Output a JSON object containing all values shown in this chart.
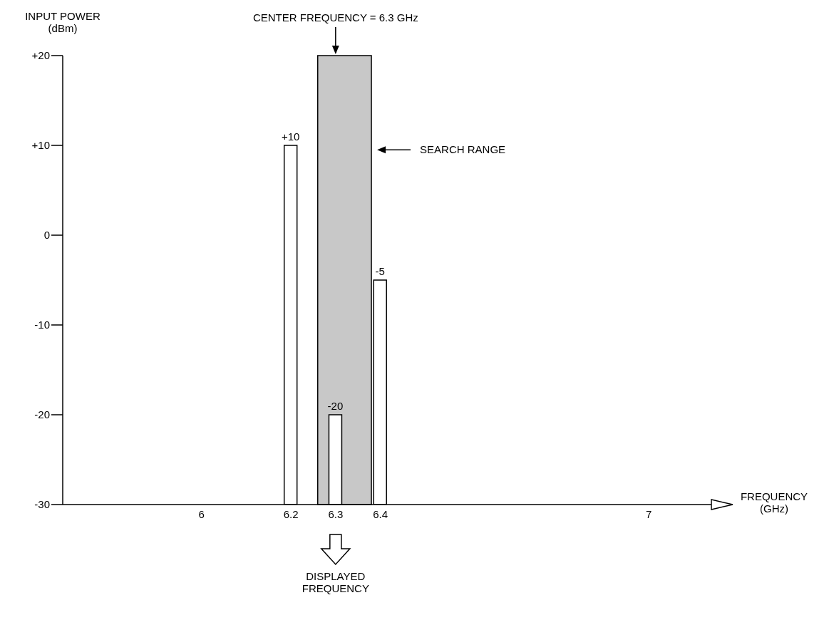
{
  "chart_data": {
    "type": "bar",
    "ylabel": "INPUT POWER (dBm)",
    "xlabel": "FREQUENCY (GHz)",
    "x": [
      6.2,
      6.3,
      6.4
    ],
    "base": [
      -30,
      -30,
      -30
    ],
    "values": [
      40,
      10,
      25
    ],
    "value_labels": [
      "+10",
      "-20",
      "-5"
    ],
    "color": "#ffffff",
    "xlim": [
      5.69,
      7.14
    ],
    "xticks": [
      6,
      6.2,
      6.3,
      6.4,
      7
    ],
    "ylim": [
      -30,
      20
    ],
    "yticks": [
      {
        "value": 20,
        "label": "+20"
      },
      {
        "value": 10,
        "label": "+10"
      },
      0,
      -10,
      -20,
      -30
    ],
    "bands": [
      {
        "axis": "x",
        "from": 6.26,
        "to": 6.38,
        "label": "SEARCH RANGE",
        "color": "#c8c8c8"
      }
    ],
    "annotations": [
      {
        "text": "CENTER FREQUENCY = 6.3 GHz",
        "x": 6.3,
        "y": 20
      },
      "DISPLAYED FREQUENCY"
    ],
    "grid": false,
    "legend": false
  }
}
